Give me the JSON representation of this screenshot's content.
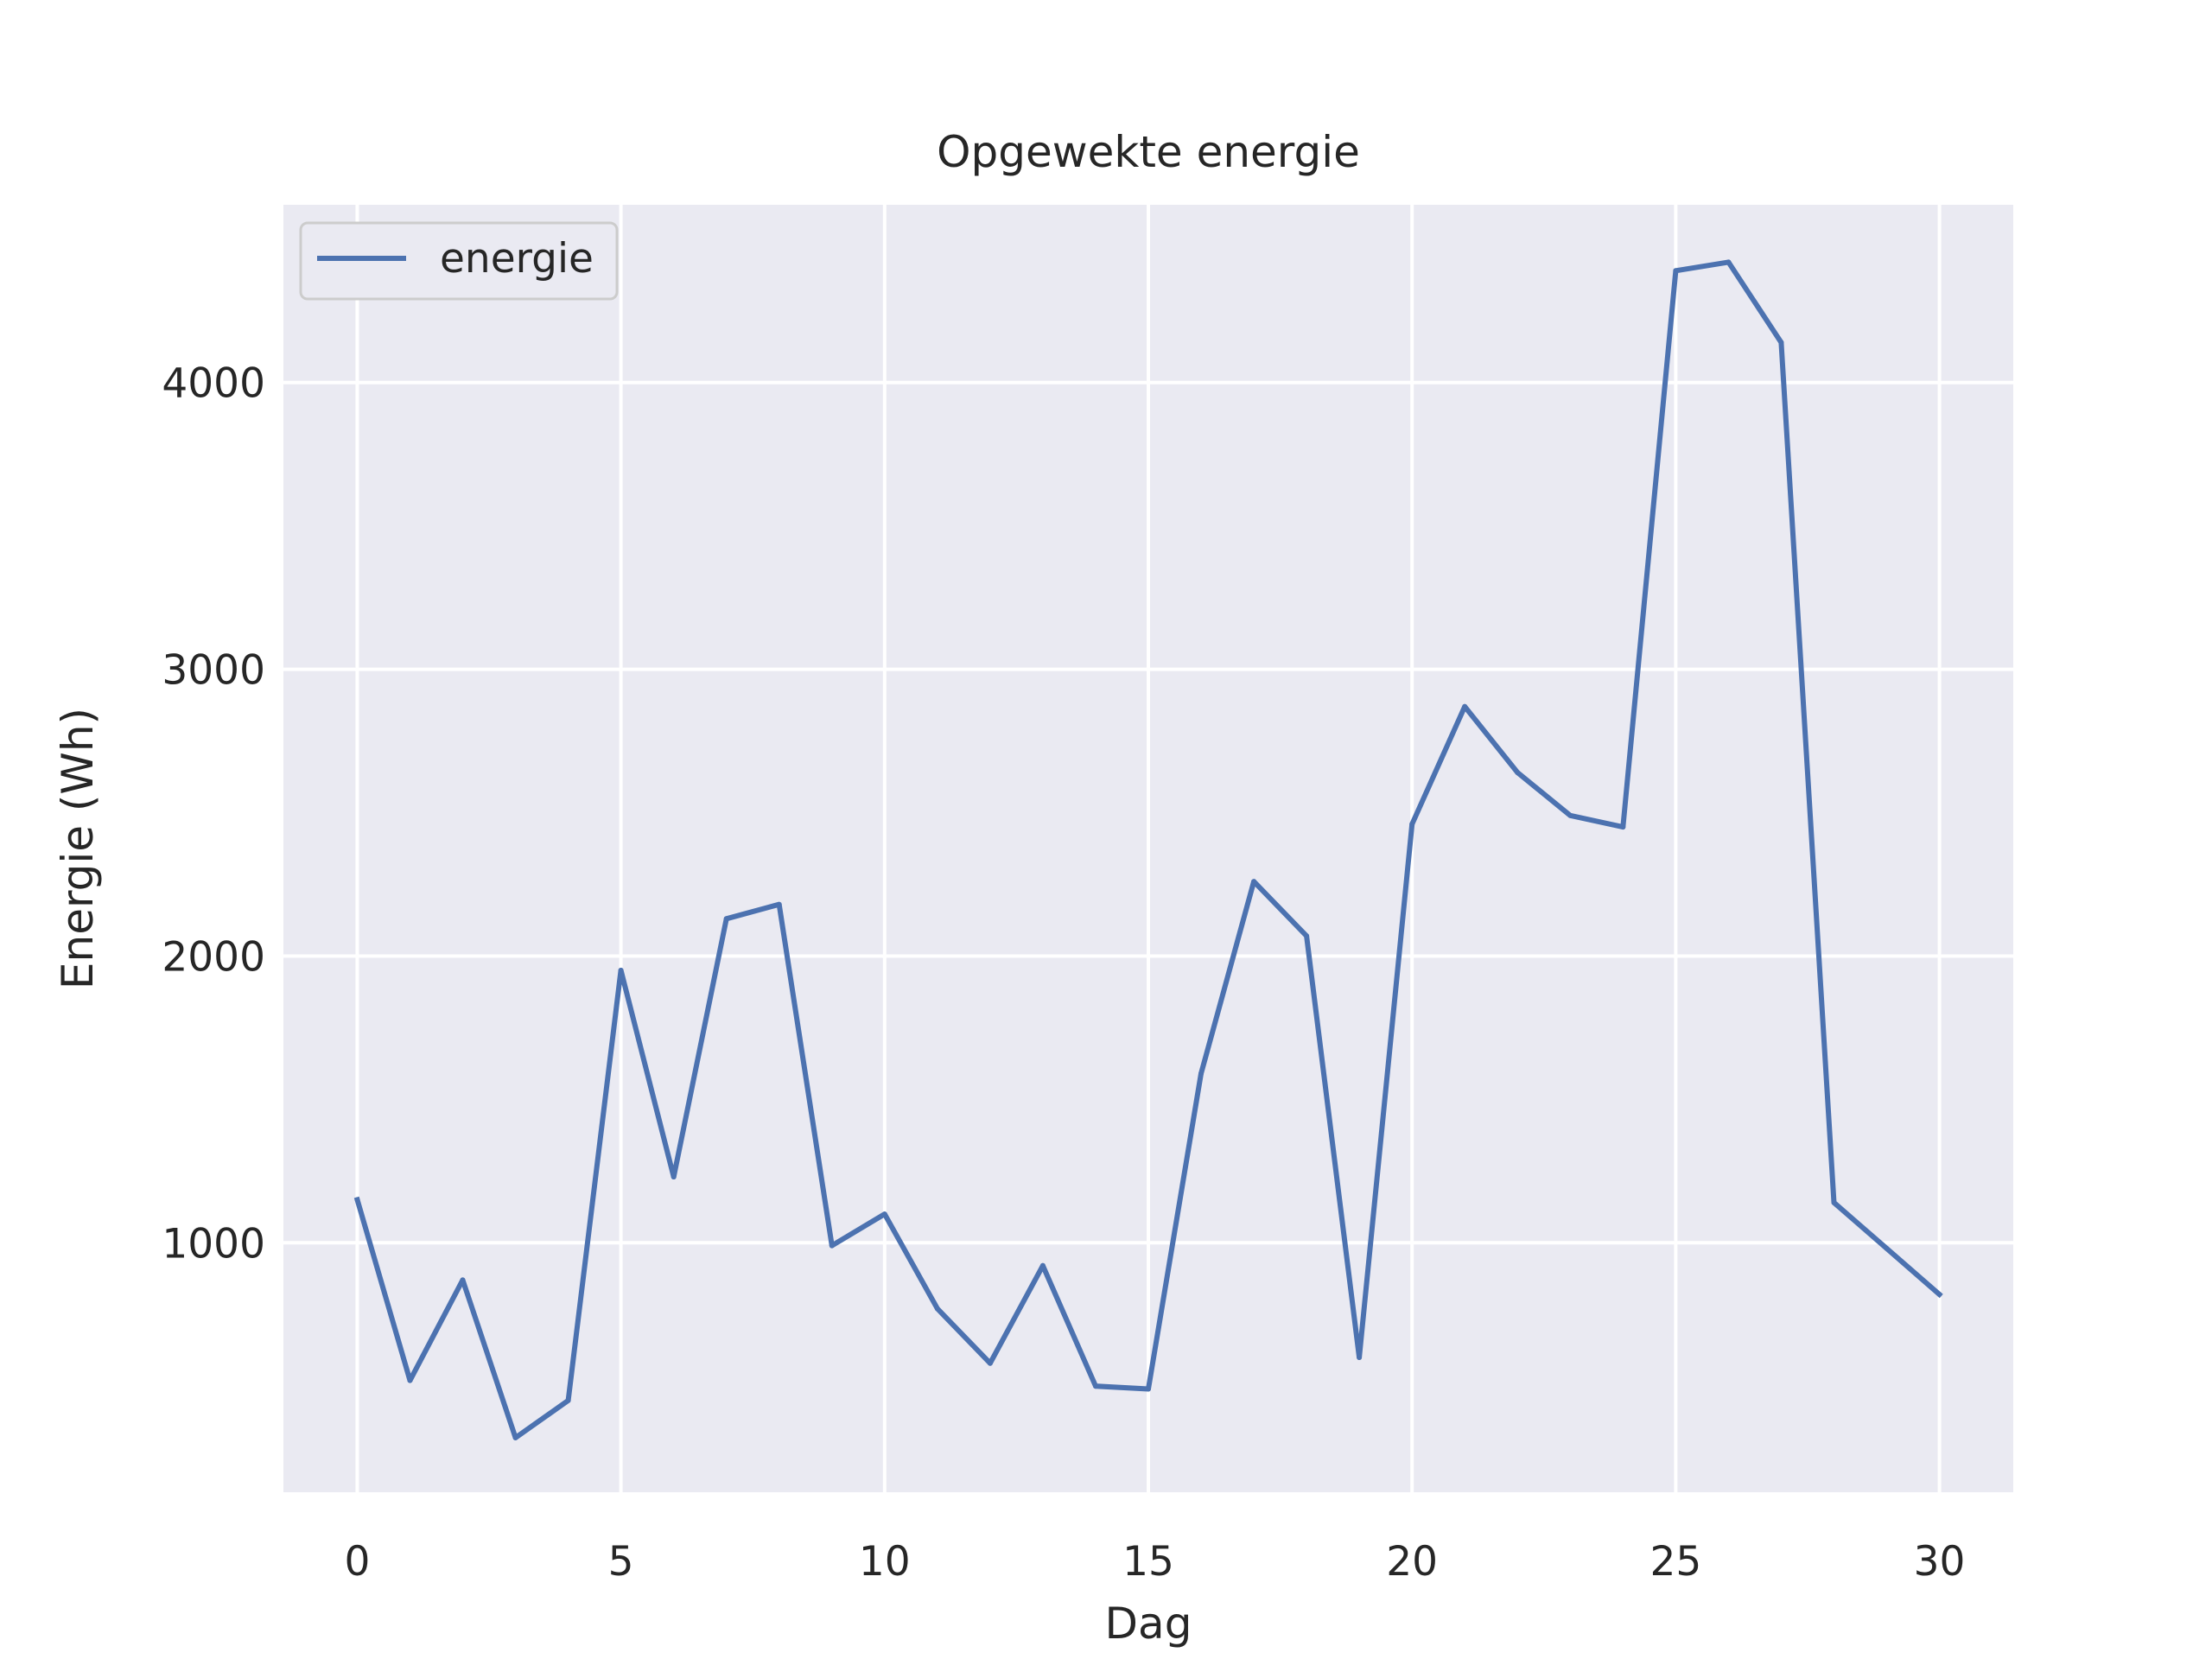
{
  "chart_data": {
    "type": "line",
    "title": "Opgewekte energie",
    "xlabel": "Dag",
    "ylabel": "Energie (Wh)",
    "xlim": [
      -1.4,
      31.4
    ],
    "ylim": [
      130,
      4620
    ],
    "xticks": [
      0,
      5,
      10,
      15,
      20,
      25,
      30
    ],
    "yticks": [
      1000,
      2000,
      3000,
      4000
    ],
    "grid": true,
    "legend_position": "top-left",
    "colors": {
      "background": "#eaeaf2",
      "grid": "#ffffff",
      "line": "#4c72b0"
    },
    "series": [
      {
        "name": "energie",
        "x": [
          0,
          1,
          2,
          3,
          4,
          5,
          6,
          7,
          8,
          9,
          10,
          11,
          12,
          13,
          14,
          15,
          16,
          17,
          18,
          19,
          20,
          21,
          22,
          23,
          24,
          25,
          26,
          27,
          28,
          29,
          30
        ],
        "y": [
          1150,
          520,
          870,
          320,
          450,
          1950,
          1230,
          2130,
          2180,
          990,
          1100,
          770,
          580,
          920,
          500,
          490,
          1590,
          2260,
          2070,
          600,
          2460,
          2870,
          2640,
          2490,
          2450,
          4390,
          4420,
          4140,
          1140,
          980,
          820
        ]
      }
    ]
  }
}
